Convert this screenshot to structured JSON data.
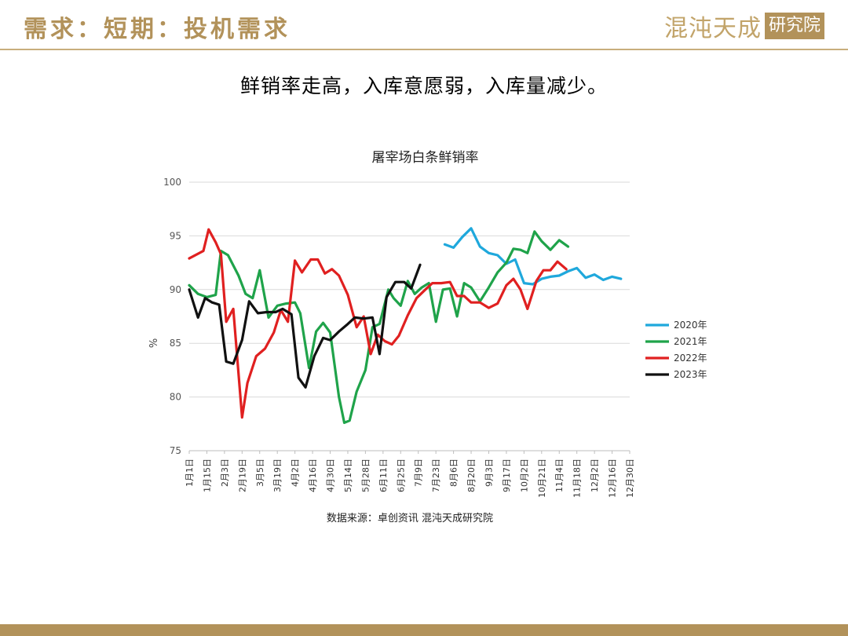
{
  "header": {
    "title": "需求：短期：投机需求",
    "logo_text": "混沌天成",
    "logo_seal": "研究院"
  },
  "subtitle": "鲜销率走高，入库意愿弱，入库量减少。",
  "chart_data": {
    "type": "line",
    "title": "屠宰场白条鲜销率",
    "ylabel": "%",
    "xlabel": "",
    "ylim": [
      75,
      100
    ],
    "yticks": [
      75,
      80,
      85,
      90,
      95,
      100
    ],
    "grid": true,
    "legend_position": "right",
    "source": "数据来源：卓创资讯 混沌天成研究院",
    "x_tick_labels": [
      "1月1日",
      "1月15日",
      "2月3日",
      "2月19日",
      "3月5日",
      "3月19日",
      "4月2日",
      "4月16日",
      "4月30日",
      "5月14日",
      "5月28日",
      "6月11日",
      "6月25日",
      "7月9日",
      "7月23日",
      "8月6日",
      "8月20日",
      "9月3日",
      "9月17日",
      "10月2日",
      "10月21日",
      "11月4日",
      "11月18日",
      "12月2日",
      "12月16日",
      "12月30日"
    ],
    "series": [
      {
        "name": "2020年",
        "color": "#1fa8dc",
        "points": [
          [
            14.5,
            94.2
          ],
          [
            15,
            93.9
          ],
          [
            15.5,
            94.9
          ],
          [
            16,
            95.7
          ],
          [
            16.5,
            94.0
          ],
          [
            17,
            93.4
          ],
          [
            17.5,
            93.2
          ],
          [
            18,
            92.4
          ],
          [
            18.5,
            92.8
          ],
          [
            19,
            90.6
          ],
          [
            19.5,
            90.5
          ],
          [
            20,
            91.0
          ],
          [
            20.5,
            91.2
          ],
          [
            21,
            91.3
          ],
          [
            21.5,
            91.7
          ],
          [
            22,
            92.0
          ],
          [
            22.5,
            91.1
          ],
          [
            23,
            91.4
          ],
          [
            23.5,
            90.9
          ],
          [
            24,
            91.2
          ],
          [
            24.5,
            91.0
          ]
        ]
      },
      {
        "name": "2021年",
        "color": "#1fa34a",
        "points": [
          [
            0,
            90.4
          ],
          [
            0.5,
            89.6
          ],
          [
            1,
            89.3
          ],
          [
            1.5,
            89.5
          ],
          [
            1.8,
            93.6
          ],
          [
            2.2,
            93.2
          ],
          [
            2.8,
            91.3
          ],
          [
            3.2,
            89.6
          ],
          [
            3.6,
            89.2
          ],
          [
            4,
            91.8
          ],
          [
            4.5,
            87.4
          ],
          [
            5,
            88.5
          ],
          [
            5.5,
            88.7
          ],
          [
            6,
            88.8
          ],
          [
            6.3,
            87.8
          ],
          [
            6.8,
            82.7
          ],
          [
            7.2,
            86.1
          ],
          [
            7.6,
            86.9
          ],
          [
            8,
            86.0
          ],
          [
            8.5,
            80.0
          ],
          [
            8.8,
            77.6
          ],
          [
            9.1,
            77.8
          ],
          [
            9.5,
            80.5
          ],
          [
            10,
            82.5
          ],
          [
            10.4,
            86.5
          ],
          [
            10.8,
            86.8
          ],
          [
            11.3,
            90.0
          ],
          [
            11.6,
            89.2
          ],
          [
            12,
            88.5
          ],
          [
            12.4,
            90.8
          ],
          [
            12.8,
            89.6
          ],
          [
            13.2,
            90.2
          ],
          [
            13.6,
            90.6
          ],
          [
            14,
            87.0
          ],
          [
            14.4,
            90.0
          ],
          [
            14.8,
            90.1
          ],
          [
            15.2,
            87.5
          ],
          [
            15.6,
            90.6
          ],
          [
            16,
            90.2
          ],
          [
            16.5,
            88.9
          ],
          [
            17,
            90.2
          ],
          [
            17.5,
            91.6
          ],
          [
            18,
            92.5
          ],
          [
            18.4,
            93.8
          ],
          [
            18.8,
            93.7
          ],
          [
            19.2,
            93.4
          ],
          [
            19.6,
            95.4
          ],
          [
            20,
            94.5
          ],
          [
            20.5,
            93.7
          ],
          [
            21,
            94.6
          ],
          [
            21.5,
            94.0
          ]
        ]
      },
      {
        "name": "2022年",
        "color": "#e02020",
        "points": [
          [
            0,
            92.9
          ],
          [
            0.8,
            93.6
          ],
          [
            1.1,
            95.6
          ],
          [
            1.5,
            94.4
          ],
          [
            1.8,
            93.3
          ],
          [
            2.1,
            87.0
          ],
          [
            2.5,
            88.2
          ],
          [
            3,
            78.1
          ],
          [
            3.3,
            81.3
          ],
          [
            3.8,
            83.8
          ],
          [
            4.3,
            84.5
          ],
          [
            4.8,
            86.0
          ],
          [
            5.2,
            88.1
          ],
          [
            5.6,
            87.0
          ],
          [
            6,
            92.7
          ],
          [
            6.4,
            91.6
          ],
          [
            6.9,
            92.8
          ],
          [
            7.3,
            92.8
          ],
          [
            7.7,
            91.5
          ],
          [
            8.1,
            91.9
          ],
          [
            8.5,
            91.3
          ],
          [
            9,
            89.5
          ],
          [
            9.5,
            86.5
          ],
          [
            9.9,
            87.5
          ],
          [
            10.3,
            84.0
          ],
          [
            10.7,
            85.8
          ],
          [
            11.1,
            85.2
          ],
          [
            11.5,
            84.9
          ],
          [
            11.9,
            85.7
          ],
          [
            12.4,
            87.6
          ],
          [
            12.9,
            89.2
          ],
          [
            13.4,
            90.0
          ],
          [
            13.8,
            90.6
          ],
          [
            14.3,
            90.6
          ],
          [
            14.8,
            90.7
          ],
          [
            15.2,
            89.4
          ],
          [
            15.6,
            89.4
          ],
          [
            16,
            88.8
          ],
          [
            16.5,
            88.8
          ],
          [
            17,
            88.3
          ],
          [
            17.5,
            88.7
          ],
          [
            18,
            90.4
          ],
          [
            18.4,
            91.0
          ],
          [
            18.8,
            90.0
          ],
          [
            19.2,
            88.2
          ],
          [
            19.7,
            90.8
          ],
          [
            20.1,
            91.8
          ],
          [
            20.5,
            91.8
          ],
          [
            20.9,
            92.6
          ],
          [
            21.4,
            91.9
          ]
        ]
      },
      {
        "name": "2023年",
        "color": "#111111",
        "points": [
          [
            0,
            90.0
          ],
          [
            0.5,
            87.4
          ],
          [
            0.9,
            89.2
          ],
          [
            1.3,
            88.8
          ],
          [
            1.7,
            88.6
          ],
          [
            2.1,
            83.3
          ],
          [
            2.5,
            83.1
          ],
          [
            3,
            85.3
          ],
          [
            3.4,
            88.9
          ],
          [
            3.9,
            87.8
          ],
          [
            4.4,
            87.9
          ],
          [
            4.9,
            87.9
          ],
          [
            5.3,
            88.2
          ],
          [
            5.8,
            87.7
          ],
          [
            6.2,
            81.8
          ],
          [
            6.6,
            80.9
          ],
          [
            7.1,
            83.8
          ],
          [
            7.6,
            85.5
          ],
          [
            8,
            85.3
          ],
          [
            8.5,
            86.1
          ],
          [
            9,
            86.8
          ],
          [
            9.4,
            87.4
          ],
          [
            9.9,
            87.3
          ],
          [
            10.4,
            87.4
          ],
          [
            10.8,
            84.0
          ],
          [
            11.2,
            89.3
          ],
          [
            11.7,
            90.7
          ],
          [
            12.2,
            90.7
          ],
          [
            12.6,
            90.1
          ],
          [
            13.1,
            92.3
          ]
        ]
      }
    ]
  }
}
